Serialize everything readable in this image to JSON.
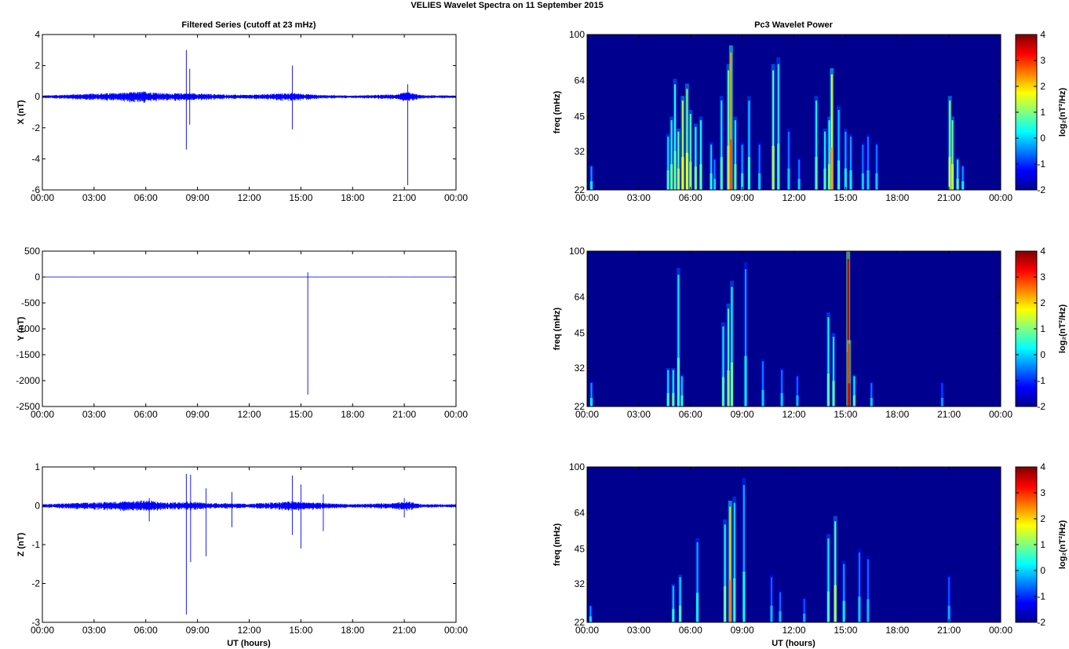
{
  "figure": {
    "title": "VELIES Wavelet Spectra on 11 September 2015",
    "left_title": "Filtered Series (cutoff at 23 mHz)",
    "right_title": "Pc3 Wavelet Power",
    "xlabel": "UT (hours)"
  },
  "colors": {
    "series_line": "#0000ff",
    "heatmap_background": "#00008f",
    "colormap": [
      "#00008f",
      "#0000ff",
      "#0080ff",
      "#00ffff",
      "#80ff80",
      "#ffff00",
      "#ff8000",
      "#ff0000",
      "#800000"
    ]
  },
  "chart_data": [
    {
      "type": "line",
      "ylabel": "X (nT)",
      "xlim": [
        0,
        24
      ],
      "ylim": [
        -6,
        4
      ],
      "x_ticks": [
        "00:00",
        "03:00",
        "06:00",
        "09:00",
        "12:00",
        "15:00",
        "18:00",
        "21:00",
        "00:00"
      ],
      "y_ticks": [
        4,
        2,
        0,
        -2,
        -4,
        -6
      ],
      "noise": [
        [
          0,
          0.08
        ],
        [
          0.4,
          0.1
        ],
        [
          5.0,
          0.28
        ],
        [
          6.0,
          0.35
        ],
        [
          7.2,
          0.22
        ],
        [
          8.4,
          0.24
        ],
        [
          9.6,
          0.18
        ],
        [
          10.8,
          0.14
        ],
        [
          12.0,
          0.12
        ],
        [
          13.0,
          0.18
        ],
        [
          14.5,
          0.25
        ],
        [
          16.0,
          0.12
        ],
        [
          18.0,
          0.08
        ],
        [
          20.5,
          0.15
        ],
        [
          21.2,
          0.3
        ],
        [
          22.0,
          0.1
        ],
        [
          24,
          0.08
        ]
      ],
      "spikes": [
        [
          8.35,
          3.0,
          -3.4
        ],
        [
          8.55,
          1.8,
          -1.8
        ],
        [
          14.5,
          2.0,
          -2.1
        ],
        [
          21.2,
          0.8,
          -5.7
        ]
      ]
    },
    {
      "type": "line",
      "ylabel": "Y (nT)",
      "xlim": [
        0,
        24
      ],
      "ylim": [
        -2500,
        500
      ],
      "x_ticks": [
        "00:00",
        "03:00",
        "06:00",
        "09:00",
        "12:00",
        "15:00",
        "18:00",
        "21:00",
        "00:00"
      ],
      "y_ticks": [
        500,
        0,
        -500,
        -1000,
        -1500,
        -2000,
        -2500
      ],
      "noise": [
        [
          0,
          2
        ],
        [
          24,
          2
        ]
      ],
      "spikes": [
        [
          15.4,
          90,
          -2270
        ]
      ]
    },
    {
      "type": "line",
      "ylabel": "Z (nT)",
      "xlim": [
        0,
        24
      ],
      "ylim": [
        -3,
        1
      ],
      "x_ticks": [
        "00:00",
        "03:00",
        "06:00",
        "09:00",
        "12:00",
        "15:00",
        "18:00",
        "21:00",
        "00:00"
      ],
      "y_ticks": [
        1,
        0,
        -1,
        -2,
        -3
      ],
      "noise": [
        [
          0,
          0.04
        ],
        [
          0.4,
          0.05
        ],
        [
          5.0,
          0.12
        ],
        [
          6.0,
          0.15
        ],
        [
          7.2,
          0.08
        ],
        [
          8.4,
          0.12
        ],
        [
          9.6,
          0.07
        ],
        [
          10.8,
          0.07
        ],
        [
          12.0,
          0.05
        ],
        [
          13.0,
          0.08
        ],
        [
          14.5,
          0.12
        ],
        [
          16.0,
          0.08
        ],
        [
          18.0,
          0.04
        ],
        [
          20.5,
          0.08
        ],
        [
          21.2,
          0.12
        ],
        [
          22.0,
          0.04
        ],
        [
          24,
          0.04
        ]
      ],
      "spikes": [
        [
          8.35,
          0.82,
          -2.8
        ],
        [
          8.6,
          0.8,
          -1.45
        ],
        [
          9.5,
          0.45,
          -1.3
        ],
        [
          11.0,
          0.35,
          -0.55
        ],
        [
          14.5,
          0.78,
          -0.75
        ],
        [
          15.0,
          0.55,
          -1.1
        ],
        [
          16.3,
          0.3,
          -0.65
        ],
        [
          21.0,
          0.2,
          -0.3
        ],
        [
          6.2,
          0.2,
          -0.4
        ]
      ]
    },
    {
      "type": "heatmap",
      "ylabel": "freq (mHz)",
      "cbar_label": "log₂(nT²/Hz)",
      "yscale": "log",
      "xlim": [
        0,
        24
      ],
      "ylim": [
        22,
        100
      ],
      "x_ticks": [
        "00:00",
        "03:00",
        "06:00",
        "09:00",
        "12:00",
        "15:00",
        "18:00",
        "21:00",
        "00:00"
      ],
      "y_ticks": [
        100,
        64,
        45,
        32,
        22
      ],
      "clim": [
        -2,
        4
      ],
      "cbar_ticks": [
        4,
        3,
        2,
        1,
        0,
        -1,
        -2
      ],
      "events": [
        [
          0.25,
          28,
          -0.3
        ],
        [
          4.7,
          38,
          0.1
        ],
        [
          4.9,
          45,
          0.4
        ],
        [
          5.1,
          65,
          0.4
        ],
        [
          5.3,
          40,
          0.8
        ],
        [
          5.55,
          55,
          1.3
        ],
        [
          5.8,
          62,
          1.1
        ],
        [
          6.0,
          48,
          0.7
        ],
        [
          6.3,
          42,
          0.5
        ],
        [
          6.6,
          45,
          0.3
        ],
        [
          7.2,
          35,
          0.0
        ],
        [
          7.4,
          30,
          -0.5
        ],
        [
          7.8,
          55,
          0.2
        ],
        [
          8.2,
          75,
          0.8
        ],
        [
          8.35,
          90,
          2.3
        ],
        [
          8.6,
          45,
          0.3
        ],
        [
          9.0,
          35,
          -0.3
        ],
        [
          9.4,
          55,
          0.0
        ],
        [
          10.0,
          35,
          -0.5
        ],
        [
          10.8,
          75,
          0.8
        ],
        [
          11.1,
          80,
          0.2
        ],
        [
          11.7,
          40,
          -0.5
        ],
        [
          12.3,
          30,
          -0.5
        ],
        [
          13.3,
          55,
          0.3
        ],
        [
          13.8,
          40,
          0.2
        ],
        [
          14.05,
          45,
          0.5
        ],
        [
          14.2,
          72,
          1.8
        ],
        [
          14.6,
          50,
          0.0
        ],
        [
          15.0,
          40,
          -0.2
        ],
        [
          15.3,
          38,
          -0.3
        ],
        [
          16.0,
          35,
          -0.5
        ],
        [
          16.3,
          38,
          -0.5
        ],
        [
          16.8,
          35,
          -0.5
        ],
        [
          21.05,
          55,
          1.2
        ],
        [
          21.2,
          45,
          0.8
        ],
        [
          21.5,
          30,
          0.3
        ],
        [
          21.8,
          28,
          -0.3
        ]
      ]
    },
    {
      "type": "heatmap",
      "ylabel": "freq (mHz)",
      "cbar_label": "log₂(nT²/Hz)",
      "yscale": "log",
      "xlim": [
        0,
        24
      ],
      "ylim": [
        22,
        100
      ],
      "x_ticks": [
        "00:00",
        "03:00",
        "06:00",
        "09:00",
        "12:00",
        "15:00",
        "18:00",
        "21:00",
        "00:00"
      ],
      "y_ticks": [
        100,
        64,
        45,
        32,
        22
      ],
      "clim": [
        -2,
        4
      ],
      "cbar_ticks": [
        4,
        3,
        2,
        1,
        0,
        -1,
        -2
      ],
      "events": [
        [
          0.25,
          28,
          -0.3
        ],
        [
          4.7,
          32,
          0.1
        ],
        [
          5.0,
          32,
          0.3
        ],
        [
          5.3,
          85,
          0.2
        ],
        [
          5.5,
          30,
          0.0
        ],
        [
          7.9,
          50,
          0.2
        ],
        [
          8.2,
          60,
          0.6
        ],
        [
          8.4,
          75,
          0.4
        ],
        [
          9.2,
          90,
          -0.3
        ],
        [
          10.2,
          35,
          -0.5
        ],
        [
          11.3,
          32,
          -0.5
        ],
        [
          12.2,
          30,
          -0.6
        ],
        [
          14.0,
          55,
          0.3
        ],
        [
          14.3,
          45,
          0.3
        ],
        [
          15.15,
          100,
          3.8
        ],
        [
          15.2,
          42,
          3.0
        ],
        [
          15.5,
          30,
          0.2
        ],
        [
          16.5,
          28,
          -0.5
        ],
        [
          20.6,
          28,
          -0.8
        ]
      ]
    },
    {
      "type": "heatmap",
      "ylabel": "freq (mHz)",
      "cbar_label": "log₂(nT²/Hz)",
      "yscale": "log",
      "xlim": [
        0,
        24
      ],
      "ylim": [
        22,
        100
      ],
      "x_ticks": [
        "00:00",
        "03:00",
        "06:00",
        "09:00",
        "12:00",
        "15:00",
        "18:00",
        "21:00",
        "00:00"
      ],
      "y_ticks": [
        100,
        64,
        45,
        32,
        22
      ],
      "clim": [
        -2,
        4
      ],
      "cbar_ticks": [
        4,
        3,
        2,
        1,
        0,
        -1,
        -2
      ],
      "events": [
        [
          0.2,
          26,
          -0.4
        ],
        [
          5.0,
          32,
          0.0
        ],
        [
          5.4,
          35,
          0.1
        ],
        [
          6.4,
          50,
          -0.2
        ],
        [
          8.0,
          60,
          0.4
        ],
        [
          8.3,
          72,
          2.0
        ],
        [
          8.55,
          75,
          0.1
        ],
        [
          9.1,
          90,
          -0.2
        ],
        [
          10.7,
          35,
          -0.6
        ],
        [
          11.2,
          30,
          -0.6
        ],
        [
          12.6,
          28,
          -0.7
        ],
        [
          14.0,
          52,
          0.2
        ],
        [
          14.4,
          62,
          0.8
        ],
        [
          14.9,
          40,
          -0.3
        ],
        [
          15.8,
          45,
          -0.5
        ],
        [
          16.3,
          42,
          -0.6
        ],
        [
          21.0,
          35,
          -0.7
        ]
      ]
    }
  ]
}
